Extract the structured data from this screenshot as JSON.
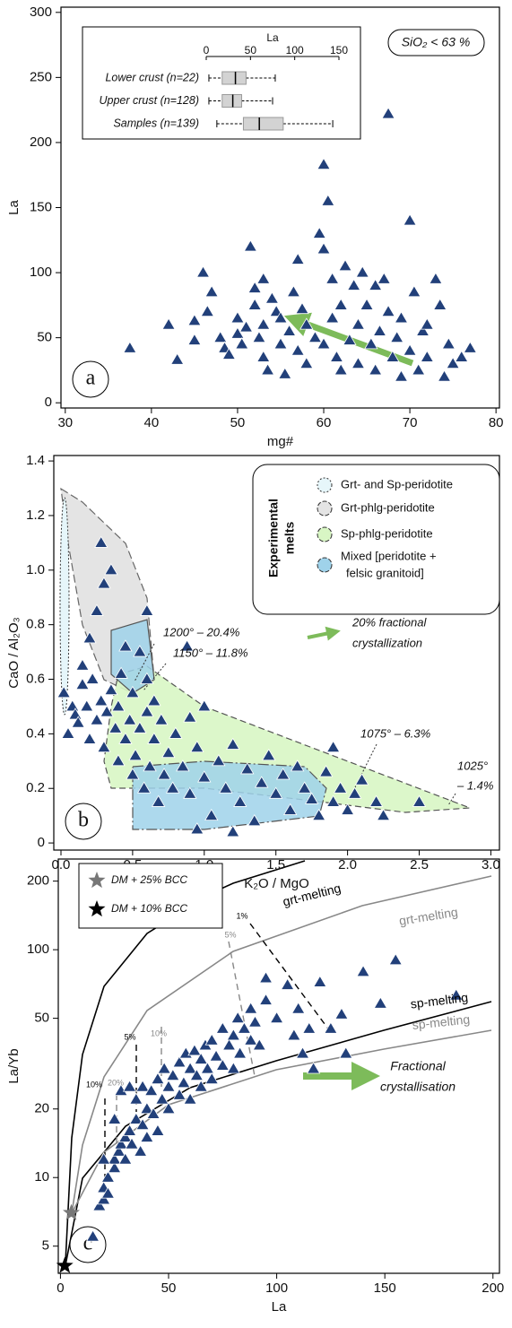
{
  "chart_data": [
    {
      "type": "scatter",
      "panel_label": "a",
      "xlabel": "mg#",
      "ylabel": "La",
      "annotation": "SiO₂ < 63 %",
      "xlim": [
        29.5,
        80.4
      ],
      "ylim": [
        -4,
        304
      ],
      "xticks": [
        30,
        40,
        50,
        60,
        70,
        80
      ],
      "yticks": [
        0,
        50,
        100,
        150,
        200,
        250,
        300
      ],
      "color": "#22407a",
      "x": [
        37.5,
        42,
        43,
        45,
        45,
        46,
        46.5,
        47,
        48,
        48.5,
        49,
        50,
        50,
        50.5,
        51,
        51.5,
        52,
        52,
        52.5,
        53,
        53,
        53,
        53.5,
        54,
        54.5,
        55,
        55,
        55.5,
        56,
        56.5,
        57,
        57,
        57.5,
        58,
        58,
        59,
        59.5,
        60,
        60,
        60,
        60.5,
        61,
        61,
        61.5,
        62,
        62,
        62.5,
        63,
        63.5,
        64,
        64,
        64.5,
        65,
        65.5,
        66,
        66,
        66.5,
        67,
        67.5,
        67.5,
        68,
        68.5,
        69,
        69,
        70,
        70,
        70.5,
        71,
        71.5,
        72,
        72,
        73,
        73.5,
        74,
        74.5,
        75,
        76,
        77
      ],
      "values": [
        42,
        60,
        33,
        63,
        48,
        100,
        70,
        85,
        50,
        42,
        37,
        53,
        65,
        45,
        58,
        120,
        88,
        75,
        50,
        35,
        60,
        95,
        25,
        80,
        70,
        45,
        65,
        22,
        55,
        85,
        110,
        40,
        72,
        30,
        60,
        50,
        130,
        183,
        118,
        45,
        155,
        95,
        65,
        35,
        25,
        75,
        105,
        48,
        90,
        60,
        30,
        100,
        75,
        45,
        90,
        25,
        55,
        95,
        222,
        70,
        35,
        50,
        65,
        20,
        140,
        40,
        85,
        25,
        55,
        60,
        35,
        95,
        75,
        20,
        45,
        30,
        35,
        42
      ],
      "inset": {
        "type": "box",
        "xlabel": "La",
        "xlim": [
          0,
          150
        ],
        "xticks": [
          0,
          50,
          100,
          150
        ],
        "color": "#d3d3d3",
        "categories": [
          "Lower crust (n=22)",
          "Upper crust (n=128)",
          "Samples (n=139)"
        ],
        "min": [
          3,
          3,
          12
        ],
        "q1": [
          18,
          18,
          42
        ],
        "median": [
          33,
          30,
          60
        ],
        "q3": [
          45,
          40,
          87
        ],
        "max": [
          78,
          75,
          143
        ]
      }
    },
    {
      "type": "scatter",
      "panel_label": "b",
      "xlabel": "K₂O / MgO",
      "ylabel": "CaO / Al₂O₃",
      "xlim": [
        -0.05,
        3.06
      ],
      "ylim": [
        -0.026,
        1.42
      ],
      "xticks": [
        {
          "value": 0,
          "label": "0.0"
        },
        0.5,
        {
          "value": 1,
          "label": "1.0"
        },
        1.5,
        {
          "value": 2,
          "label": "2.0"
        },
        2.5,
        {
          "value": 3,
          "label": "3.0"
        }
      ],
      "yticks": [
        0,
        0.2,
        0.4,
        0.6,
        0.8,
        {
          "value": 1,
          "label": "1.0"
        },
        1.2,
        1.4
      ],
      "color": "#22407a",
      "x": [
        0.02,
        0.05,
        0.08,
        0.1,
        0.12,
        0.15,
        0.18,
        0.2,
        0.22,
        0.25,
        0.28,
        0.3,
        0.32,
        0.35,
        0.38,
        0.4,
        0.4,
        0.42,
        0.45,
        0.48,
        0.5,
        0.5,
        0.52,
        0.55,
        0.58,
        0.6,
        0.62,
        0.65,
        0.68,
        0.7,
        0.72,
        0.75,
        0.78,
        0.8,
        0.85,
        0.88,
        0.9,
        0.95,
        1.0,
        1.05,
        1.1,
        1.15,
        1.2,
        1.25,
        1.3,
        1.35,
        1.4,
        1.45,
        1.5,
        1.55,
        1.6,
        1.65,
        1.7,
        1.75,
        1.8,
        1.85,
        1.9,
        1.95,
        2.0,
        2.05,
        2.1,
        2.2,
        2.25,
        2.5,
        0.2,
        0.25,
        0.28,
        0.35,
        0.15,
        0.3,
        0.45,
        0.6,
        0.55,
        0.6,
        0.65,
        1.0,
        0.9,
        1.9,
        1.2,
        0.95
      ],
      "values": [
        0.55,
        0.4,
        0.5,
        0.47,
        0.44,
        0.58,
        0.5,
        0.38,
        0.6,
        0.45,
        0.52,
        0.35,
        0.48,
        0.56,
        0.42,
        0.3,
        0.5,
        0.62,
        0.38,
        0.45,
        0.25,
        0.55,
        0.32,
        0.42,
        0.2,
        0.48,
        0.28,
        0.38,
        0.15,
        0.45,
        0.25,
        0.33,
        0.2,
        0.4,
        0.28,
        0.72,
        0.18,
        0.35,
        0.24,
        0.1,
        0.3,
        0.2,
        0.36,
        0.15,
        0.27,
        0.08,
        0.22,
        0.32,
        0.18,
        0.25,
        0.12,
        0.28,
        0.2,
        0.16,
        0.1,
        0.26,
        0.15,
        0.2,
        0.12,
        0.18,
        0.23,
        0.15,
        0.1,
        0.15,
        0.75,
        0.85,
        1.1,
        1.0,
        0.65,
        0.95,
        0.72,
        0.6,
        0.7,
        0.85,
        0.52,
        0.5,
        0.46,
        0.35,
        0.04,
        0.05
      ],
      "legend_title": [
        "Experimental",
        "melts"
      ],
      "legend_position": "upper right",
      "fields": [
        {
          "name": [
            "Grt- and Sp-peridotite"
          ],
          "color": "#e6f6fa"
        },
        {
          "name": [
            "Grt-phlg-peridotite"
          ],
          "color": "#e4e4e4"
        },
        {
          "name": [
            "Sp-phlg-peridotite"
          ],
          "color": "#d8f6c4"
        },
        {
          "name": [
            "Mixed [peridotite +",
            "felsic granitoid]"
          ],
          "color": "#9fd2ea"
        }
      ],
      "annotations": [
        [
          "20% fractional",
          "crystallization"
        ],
        [
          "1200° – 20.4%"
        ],
        [
          "1150° – 11.8%"
        ],
        [
          "1075° – 6.3%"
        ],
        [
          "1025°",
          "– 1.4%"
        ]
      ]
    },
    {
      "type": "scatter",
      "panel_label": "c",
      "xlabel": "La",
      "ylabel": "La/Yb",
      "ylog": true,
      "xlim": [
        -1,
        203
      ],
      "ylim": [
        3.8,
        250
      ],
      "xticks": [
        0,
        50,
        100,
        150,
        200
      ],
      "yticks": [
        5,
        10,
        20,
        50,
        100,
        200
      ],
      "color": "#22407a",
      "x": [
        18,
        20,
        20,
        22,
        22,
        25,
        25,
        27,
        28,
        30,
        30,
        32,
        33,
        35,
        35,
        37,
        38,
        38,
        40,
        40,
        42,
        43,
        45,
        45,
        47,
        48,
        50,
        50,
        52,
        55,
        55,
        57,
        58,
        60,
        60,
        62,
        63,
        65,
        65,
        67,
        68,
        70,
        70,
        72,
        75,
        75,
        78,
        80,
        80,
        82,
        83,
        85,
        88,
        88,
        90,
        92,
        95,
        95,
        100,
        105,
        108,
        110,
        112,
        115,
        117,
        120,
        125,
        130,
        132,
        140,
        148,
        155,
        183,
        15,
        20,
        25,
        28,
        32
      ],
      "values": [
        7.5,
        8,
        9,
        8.5,
        10,
        11,
        12,
        13,
        14,
        12,
        15,
        16,
        14,
        18,
        22,
        13,
        17,
        25,
        20,
        15,
        24,
        19,
        27,
        16,
        22,
        30,
        20,
        25,
        28,
        23,
        32,
        26,
        35,
        30,
        22,
        36,
        28,
        33,
        25,
        38,
        30,
        27,
        40,
        34,
        31,
        45,
        38,
        42,
        30,
        50,
        35,
        45,
        55,
        40,
        48,
        38,
        60,
        75,
        50,
        70,
        42,
        55,
        35,
        45,
        30,
        72,
        45,
        52,
        35,
        80,
        58,
        90,
        63,
        5.5,
        12,
        18,
        24,
        25
      ],
      "reference_points": [
        {
          "name": "DM + 25% BCC",
          "color": "#777777",
          "x": 5,
          "value": 7
        },
        {
          "name": "DM + 10% BCC",
          "color": "#000000",
          "x": 2,
          "value": 4.1
        }
      ],
      "legend_position": "upper left",
      "curves": [
        {
          "name": "grt-melting",
          "color": "#000000"
        },
        {
          "name": "grt-melting",
          "color": "#888888"
        },
        {
          "name": "sp-melting",
          "color": "#000000"
        },
        {
          "name": "sp-melting",
          "color": "#888888"
        }
      ],
      "tie_labels": [
        {
          "color": "#000000",
          "labels": [
            "1%",
            "5%",
            "10%"
          ]
        },
        {
          "color": "#888888",
          "labels": [
            "5%",
            "10%",
            "20%"
          ]
        }
      ],
      "annotation": [
        "Fractional",
        "crystallisation"
      ]
    }
  ]
}
